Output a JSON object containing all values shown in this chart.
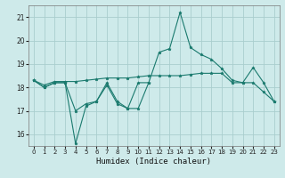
{
  "x": [
    0,
    1,
    2,
    3,
    4,
    5,
    6,
    7,
    8,
    9,
    10,
    11,
    12,
    13,
    14,
    15,
    16,
    17,
    18,
    19,
    20,
    21,
    22,
    23
  ],
  "line1": [
    18.3,
    18.0,
    18.2,
    18.2,
    17.0,
    17.3,
    17.4,
    18.2,
    17.4,
    17.1,
    18.2,
    18.2,
    19.5,
    19.65,
    21.2,
    19.7,
    19.4,
    19.2,
    18.8,
    18.3,
    18.2,
    18.2,
    17.8,
    17.4
  ],
  "line2_x": [
    0,
    1,
    2,
    3,
    4,
    5,
    6,
    7,
    8,
    9,
    10,
    11
  ],
  "line2_y": [
    18.3,
    18.0,
    18.2,
    18.2,
    15.6,
    17.2,
    17.4,
    18.1,
    17.3,
    17.1,
    17.1,
    18.2
  ],
  "line3": [
    18.3,
    18.1,
    18.25,
    18.25,
    18.25,
    18.3,
    18.35,
    18.4,
    18.4,
    18.4,
    18.45,
    18.5,
    18.5,
    18.5,
    18.5,
    18.55,
    18.6,
    18.6,
    18.6,
    18.2,
    18.2,
    18.85,
    18.2,
    17.4
  ],
  "color": "#1a7a6e",
  "bg_color": "#ceeaea",
  "grid_color": "#aacece",
  "xlabel": "Humidex (Indice chaleur)",
  "xlim": [
    -0.5,
    23.5
  ],
  "ylim": [
    15.5,
    21.5
  ],
  "yticks": [
    16,
    17,
    18,
    19,
    20,
    21
  ],
  "xticks": [
    0,
    1,
    2,
    3,
    4,
    5,
    6,
    7,
    8,
    9,
    10,
    11,
    12,
    13,
    14,
    15,
    16,
    17,
    18,
    19,
    20,
    21,
    22,
    23
  ]
}
